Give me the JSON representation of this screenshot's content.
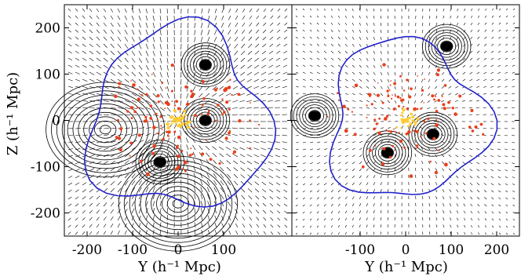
{
  "chart_data": [
    {
      "type": "contour",
      "panel": "left",
      "xlabel": "Y (h⁻¹ Mpc)",
      "ylabel": "Z (h⁻¹ Mpc)",
      "xlim": [
        -250,
        250
      ],
      "ylim": [
        -250,
        250
      ],
      "xticks": [
        -200,
        -100,
        0,
        100
      ],
      "yticks": [
        200,
        100,
        0,
        -100,
        -200
      ],
      "colors": {
        "contours": "#000000",
        "zero_contour": "#2222cc",
        "sources": "#e8401c",
        "core": "#ffcc33"
      },
      "features": [
        {
          "kind": "void",
          "x": -160,
          "y": -20
        },
        {
          "kind": "void",
          "x": 0,
          "y": -180
        },
        {
          "kind": "overdensity",
          "x": 60,
          "y": 0
        },
        {
          "kind": "overdensity",
          "x": -40,
          "y": -90
        },
        {
          "kind": "overdensity",
          "x": 60,
          "y": 120
        }
      ]
    },
    {
      "type": "contour",
      "panel": "right",
      "xlabel": "Y (h⁻¹ Mpc)",
      "xlim": [
        -250,
        250
      ],
      "ylim": [
        -250,
        250
      ],
      "xticks": [
        -100,
        0,
        100,
        200
      ],
      "colors": {
        "contours": "#000000",
        "zero_contour": "#2222cc",
        "sources": "#e8401c",
        "core": "#ffcc33"
      },
      "features": [
        {
          "kind": "overdensity",
          "x": 90,
          "y": 160
        },
        {
          "kind": "overdensity",
          "x": -200,
          "y": 10
        },
        {
          "kind": "overdensity",
          "x": -40,
          "y": -70
        },
        {
          "kind": "overdensity",
          "x": 60,
          "y": -30
        }
      ]
    }
  ]
}
